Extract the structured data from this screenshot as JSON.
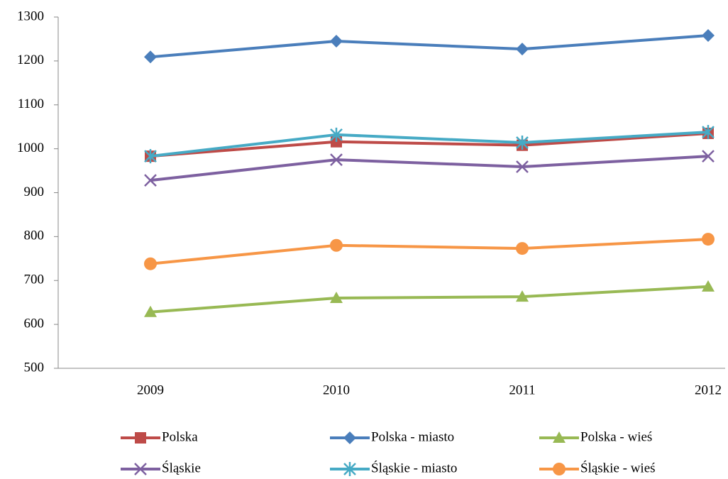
{
  "chart_data": {
    "type": "line",
    "categories": [
      "2009",
      "2010",
      "2011",
      "2012"
    ],
    "series": [
      {
        "name": "Polska",
        "color": "#be4b48",
        "marker": "square",
        "values": [
          983,
          1016,
          1008,
          1035
        ]
      },
      {
        "name": "Polska - miasto",
        "color": "#4a7ebb",
        "marker": "diamond",
        "values": [
          1209,
          1245,
          1227,
          1258
        ]
      },
      {
        "name": "Polska - wieś",
        "color": "#98b954",
        "marker": "triangle",
        "values": [
          628,
          660,
          663,
          686
        ]
      },
      {
        "name": "Śląskie",
        "color": "#7d60a0",
        "marker": "x",
        "values": [
          928,
          975,
          959,
          983
        ]
      },
      {
        "name": "Śląskie - miasto",
        "color": "#46aac5",
        "marker": "star",
        "values": [
          983,
          1032,
          1014,
          1038
        ]
      },
      {
        "name": "Śląskie - wieś",
        "color": "#f79646",
        "marker": "circle",
        "values": [
          738,
          780,
          773,
          794
        ]
      }
    ],
    "ylim": [
      500,
      1300
    ],
    "yticks": [
      500,
      600,
      700,
      800,
      900,
      1000,
      1100,
      1200,
      1300
    ],
    "grid": false,
    "legend": "bottom"
  }
}
